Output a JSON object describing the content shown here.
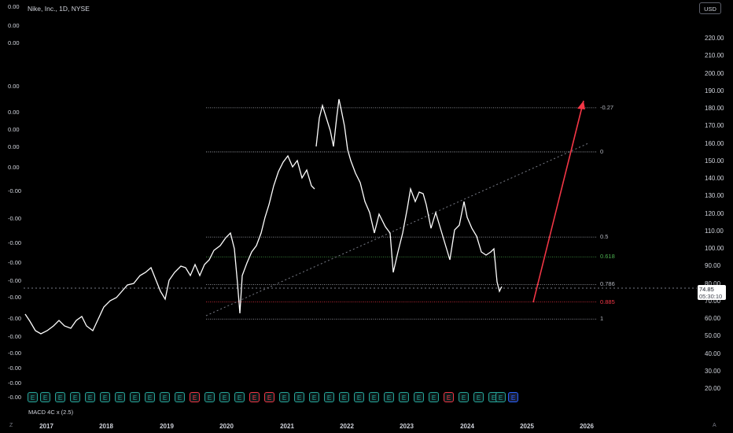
{
  "symbol_title": "Nike, Inc., 1D, NYSE",
  "currency": "USD",
  "left_axis": [
    "0.00",
    "0.00",
    "0.00",
    "0.00",
    "0.00",
    "0.00",
    "0.00",
    "0.00",
    "-0.00",
    "-0.00",
    "-0.00",
    "-0.00",
    "-0.00",
    "-0.00",
    "-0.00",
    "-0.00",
    "-0.00",
    "-0.00",
    "-0.00",
    "-0.00"
  ],
  "right_axis": [
    "220.00",
    "210.00",
    "200.00",
    "190.00",
    "180.00",
    "170.00",
    "160.00",
    "150.00",
    "140.00",
    "130.00",
    "120.00",
    "110.00",
    "100.00",
    "90.00",
    "80.00",
    "70.00",
    "60.00",
    "50.00",
    "40.00",
    "30.00",
    "20.00"
  ],
  "fib_levels": [
    {
      "label": "-0.27",
      "price": 180.5,
      "color": "#b2b5be"
    },
    {
      "label": "0",
      "price": 155.3,
      "color": "#b2b5be"
    },
    {
      "label": "0.5",
      "price": 106.7,
      "color": "#b2b5be"
    },
    {
      "label": "0.618",
      "price": 95.4,
      "color": "#4caf50"
    },
    {
      "label": "0.786",
      "price": 79.6,
      "color": "#b2b5be"
    },
    {
      "label": "0.885",
      "price": 69.6,
      "color": "#f23645"
    },
    {
      "label": "1",
      "price": 59.9,
      "color": "#b2b5be"
    }
  ],
  "last_price": "74.85",
  "countdown": "05:30:10",
  "indicator_label": "MACD 4C x (2.5)",
  "earnings_marker": "E",
  "years": [
    "2017",
    "2018",
    "2019",
    "2020",
    "2021",
    "2022",
    "2023",
    "2024",
    "2025",
    "2026"
  ],
  "corner_left": "Z",
  "corner_right": "A",
  "colors": {
    "background": "#000000",
    "candles": "#ffffff",
    "arrow": "#f23645",
    "earn_green": "#26a69a",
    "earn_red": "#f23645",
    "earn_blue": "#2962ff"
  }
}
